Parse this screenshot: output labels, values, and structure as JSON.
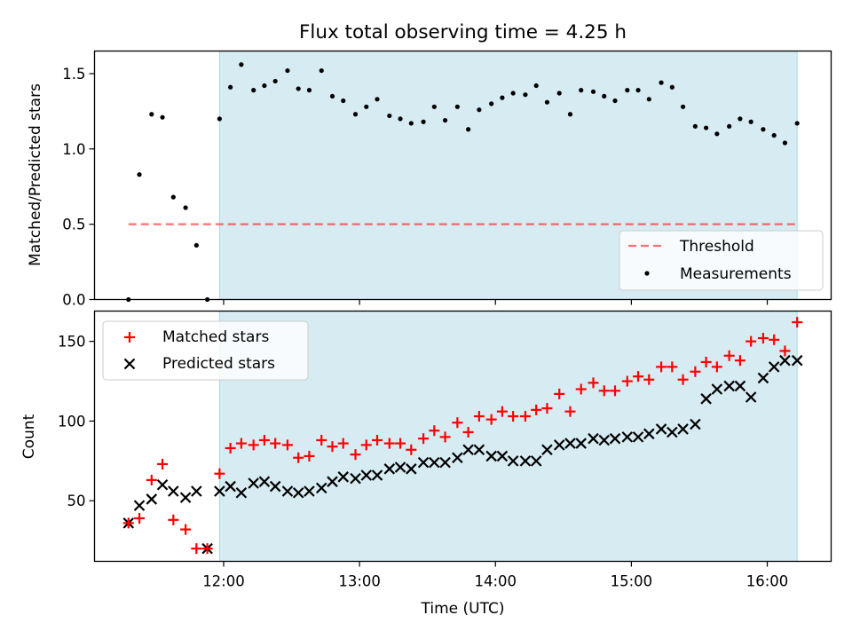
{
  "title": "Flux total observing time = 4.25 h",
  "colors": {
    "shade": "#add8e6",
    "threshold": "#ff0000",
    "measurement": "#000000",
    "matched": "#ff0000",
    "predicted": "#000000"
  },
  "chart_data": [
    {
      "type": "scatter",
      "ylabel": "Matched/Predicted stars",
      "xlim": [
        11.05,
        16.47
      ],
      "ylim": [
        0.0,
        1.65
      ],
      "yticks": [
        0.0,
        0.5,
        1.0,
        1.5
      ],
      "ytick_labels": [
        "0.0",
        "0.5",
        "1.0",
        "1.5"
      ],
      "shaded_span": [
        11.97,
        16.22
      ],
      "threshold": {
        "label": "Threshold",
        "value": 0.5,
        "x": [
          11.3,
          16.22
        ]
      },
      "legend": {
        "position": "lower-right",
        "entries": [
          "Threshold",
          "Measurements"
        ]
      },
      "series": [
        {
          "name": "Measurements",
          "x": [
            11.3,
            11.38,
            11.47,
            11.55,
            11.63,
            11.72,
            11.8,
            11.88,
            11.97,
            12.05,
            12.13,
            12.22,
            12.3,
            12.38,
            12.47,
            12.55,
            12.63,
            12.72,
            12.8,
            12.88,
            12.97,
            13.05,
            13.13,
            13.22,
            13.3,
            13.38,
            13.47,
            13.55,
            13.63,
            13.72,
            13.8,
            13.88,
            13.97,
            14.05,
            14.13,
            14.22,
            14.3,
            14.38,
            14.47,
            14.55,
            14.63,
            14.72,
            14.8,
            14.88,
            14.97,
            15.05,
            15.13,
            15.22,
            15.3,
            15.38,
            15.47,
            15.55,
            15.63,
            15.72,
            15.8,
            15.88,
            15.97,
            16.05,
            16.13,
            16.22
          ],
          "y": [
            0.0,
            0.83,
            1.23,
            1.21,
            0.68,
            0.61,
            0.36,
            0.0,
            1.2,
            1.41,
            1.56,
            1.39,
            1.42,
            1.45,
            1.52,
            1.4,
            1.39,
            1.52,
            1.35,
            1.32,
            1.23,
            1.28,
            1.33,
            1.22,
            1.2,
            1.17,
            1.18,
            1.28,
            1.19,
            1.28,
            1.13,
            1.26,
            1.3,
            1.34,
            1.37,
            1.36,
            1.42,
            1.31,
            1.37,
            1.23,
            1.39,
            1.38,
            1.35,
            1.32,
            1.39,
            1.39,
            1.33,
            1.44,
            1.41,
            1.28,
            1.15,
            1.14,
            1.1,
            1.15,
            1.2,
            1.18,
            1.13,
            1.09,
            1.04,
            1.17
          ]
        }
      ]
    },
    {
      "type": "scatter",
      "ylabel": "Count",
      "xlabel": "Time (UTC)",
      "xlim": [
        11.05,
        16.47
      ],
      "ylim": [
        12,
        169
      ],
      "xticks": [
        12,
        13,
        14,
        15,
        16
      ],
      "xtick_labels": [
        "12:00",
        "13:00",
        "14:00",
        "15:00",
        "16:00"
      ],
      "yticks": [
        50,
        100,
        150
      ],
      "ytick_labels": [
        "50",
        "100",
        "150"
      ],
      "shaded_span": [
        11.97,
        16.22
      ],
      "legend": {
        "position": "upper-left",
        "entries": [
          "Matched stars",
          "Predicted stars"
        ]
      },
      "series": [
        {
          "name": "Matched stars",
          "marker": "+",
          "x": [
            11.3,
            11.38,
            11.47,
            11.55,
            11.63,
            11.72,
            11.8,
            11.88,
            11.97,
            12.05,
            12.13,
            12.22,
            12.3,
            12.38,
            12.47,
            12.55,
            12.63,
            12.72,
            12.8,
            12.88,
            12.97,
            13.05,
            13.13,
            13.22,
            13.3,
            13.38,
            13.47,
            13.55,
            13.63,
            13.72,
            13.8,
            13.88,
            13.97,
            14.05,
            14.13,
            14.22,
            14.3,
            14.38,
            14.47,
            14.55,
            14.63,
            14.72,
            14.8,
            14.88,
            14.97,
            15.05,
            15.13,
            15.22,
            15.3,
            15.38,
            15.47,
            15.55,
            15.63,
            15.72,
            15.8,
            15.88,
            15.97,
            16.05,
            16.13,
            16.22
          ],
          "y": [
            36,
            39,
            63,
            73,
            38,
            32,
            20,
            20,
            67,
            83,
            86,
            85,
            88,
            86,
            85,
            77,
            78,
            88,
            84,
            86,
            79,
            85,
            88,
            86,
            86,
            82,
            89,
            94,
            90,
            99,
            93,
            103,
            101,
            106,
            103,
            103,
            107,
            108,
            117,
            106,
            120,
            124,
            119,
            119,
            125,
            128,
            126,
            134,
            134,
            126,
            131,
            137,
            134,
            141,
            138,
            150,
            152,
            151,
            144,
            162
          ]
        },
        {
          "name": "Predicted stars",
          "marker": "x",
          "x": [
            11.3,
            11.38,
            11.47,
            11.55,
            11.63,
            11.72,
            11.8,
            11.88,
            11.97,
            12.05,
            12.13,
            12.22,
            12.3,
            12.38,
            12.47,
            12.55,
            12.63,
            12.72,
            12.8,
            12.88,
            12.97,
            13.05,
            13.13,
            13.22,
            13.3,
            13.38,
            13.47,
            13.55,
            13.63,
            13.72,
            13.8,
            13.88,
            13.97,
            14.05,
            14.13,
            14.22,
            14.3,
            14.38,
            14.47,
            14.55,
            14.63,
            14.72,
            14.8,
            14.88,
            14.97,
            15.05,
            15.13,
            15.22,
            15.3,
            15.38,
            15.47,
            15.55,
            15.63,
            15.72,
            15.8,
            15.88,
            15.97,
            16.05,
            16.13,
            16.22
          ],
          "y": [
            36,
            47,
            51,
            60,
            56,
            52,
            56,
            20,
            56,
            59,
            55,
            61,
            62,
            59,
            56,
            55,
            56,
            58,
            62,
            65,
            64,
            66,
            66,
            70,
            71,
            70,
            74,
            74,
            74,
            77,
            82,
            82,
            78,
            78,
            75,
            75,
            75,
            82,
            85,
            86,
            86,
            89,
            88,
            89,
            90,
            90,
            92,
            95,
            93,
            95,
            98,
            114,
            120,
            122,
            122,
            115,
            127,
            134,
            138,
            138
          ]
        }
      ]
    }
  ]
}
